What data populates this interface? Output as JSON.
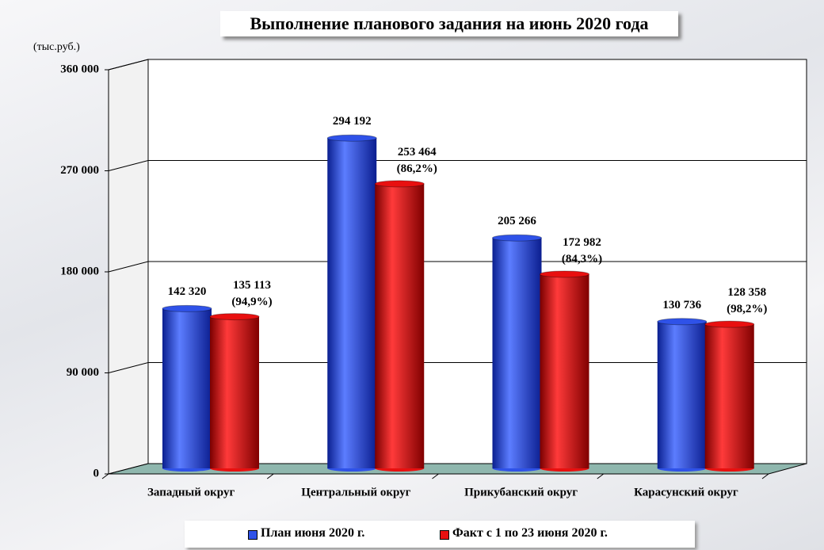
{
  "chart_data": {
    "type": "bar3d",
    "title": "Выполнение планового задания на июнь 2020 года",
    "y_label": "(тыс.руб.)",
    "categories": [
      "Западный округ",
      "Центральный округ",
      "Прикубанский округ",
      "Карасунский округ"
    ],
    "series": [
      {
        "name": "План июня 2020 г.",
        "color": "#2f52e8",
        "values": [
          142320,
          294192,
          205266,
          130736
        ],
        "value_labels": [
          "142 320",
          "294 192",
          "205 266",
          "130 736"
        ]
      },
      {
        "name": "Факт с 1 по 23 июня 2020 г.",
        "color": "#e81010",
        "values": [
          135113,
          253464,
          172982,
          128358
        ],
        "value_labels": [
          "135 113\n(94,9%)",
          "253 464\n(86,2%)",
          "172 982\n(84,3%)",
          "128 358\n(98,2%)"
        ]
      }
    ],
    "ylim": [
      0,
      360000
    ],
    "yticks": [
      0,
      {
        "value": 90000,
        "label": "90 000"
      },
      {
        "value": 180000,
        "label": "180 000"
      },
      {
        "value": 270000,
        "label": "270 000"
      },
      {
        "value": 360000,
        "label": "360 000"
      }
    ],
    "grid": true
  }
}
